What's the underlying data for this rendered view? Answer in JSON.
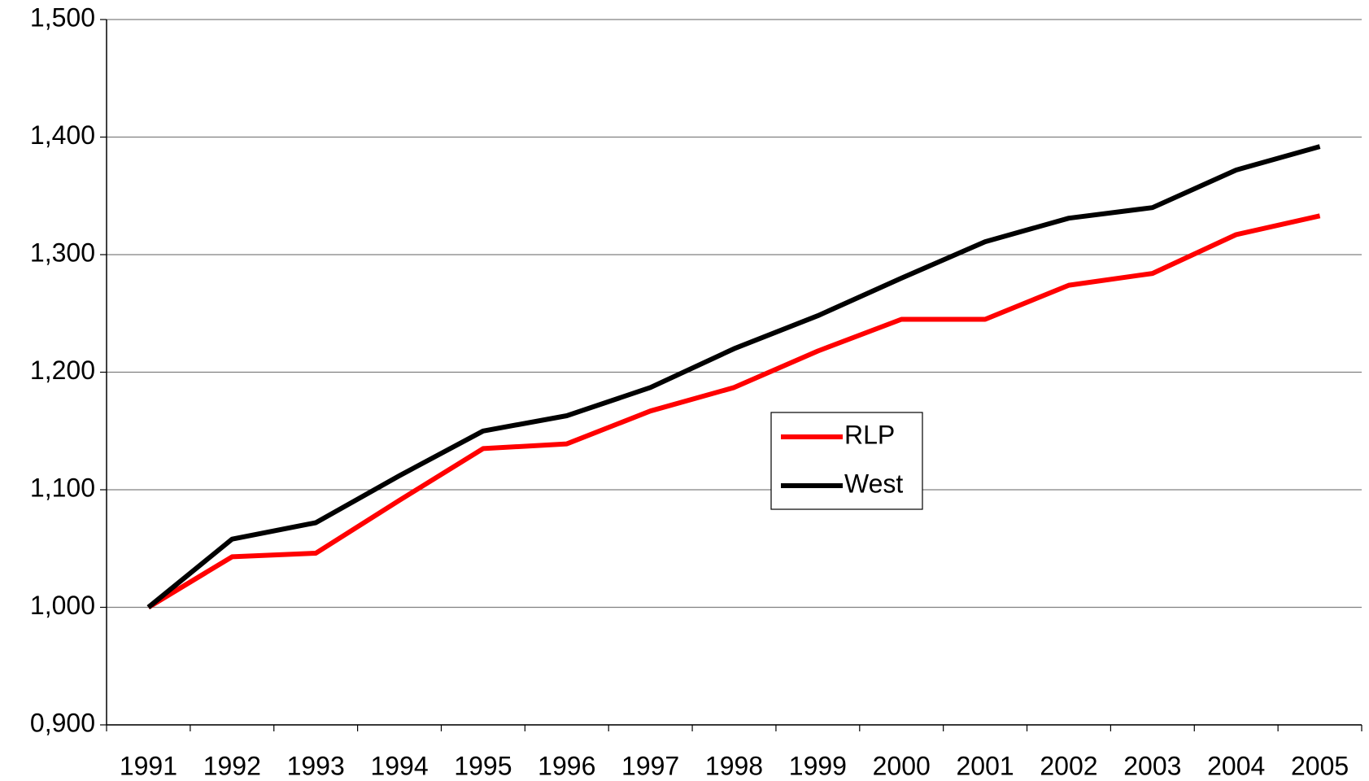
{
  "chart_data": {
    "type": "line",
    "categories": [
      "1991",
      "1992",
      "1993",
      "1994",
      "1995",
      "1996",
      "1997",
      "1998",
      "1999",
      "2000",
      "2001",
      "2002",
      "2003",
      "2004",
      "2005"
    ],
    "series": [
      {
        "name": "RLP",
        "color": "#ff0000",
        "values": [
          1.0,
          1.043,
          1.046,
          1.091,
          1.135,
          1.139,
          1.167,
          1.187,
          1.218,
          1.245,
          1.245,
          1.274,
          1.284,
          1.317,
          1.333
        ]
      },
      {
        "name": "West",
        "color": "#000000",
        "values": [
          1.0,
          1.058,
          1.072,
          1.112,
          1.15,
          1.163,
          1.187,
          1.22,
          1.248,
          1.28,
          1.311,
          1.331,
          1.34,
          1.372,
          1.392
        ]
      }
    ],
    "ylim": [
      0.9,
      1.5
    ],
    "yticks": [
      {
        "value": 0.9,
        "label": "0,900"
      },
      {
        "value": 1.0,
        "label": "1,000"
      },
      {
        "value": 1.1,
        "label": "1,100"
      },
      {
        "value": 1.2,
        "label": "1,200"
      },
      {
        "value": 1.3,
        "label": "1,300"
      },
      {
        "value": 1.4,
        "label": "1,400"
      },
      {
        "value": 1.5,
        "label": "1,500"
      }
    ],
    "grid": true,
    "legend": "center"
  }
}
